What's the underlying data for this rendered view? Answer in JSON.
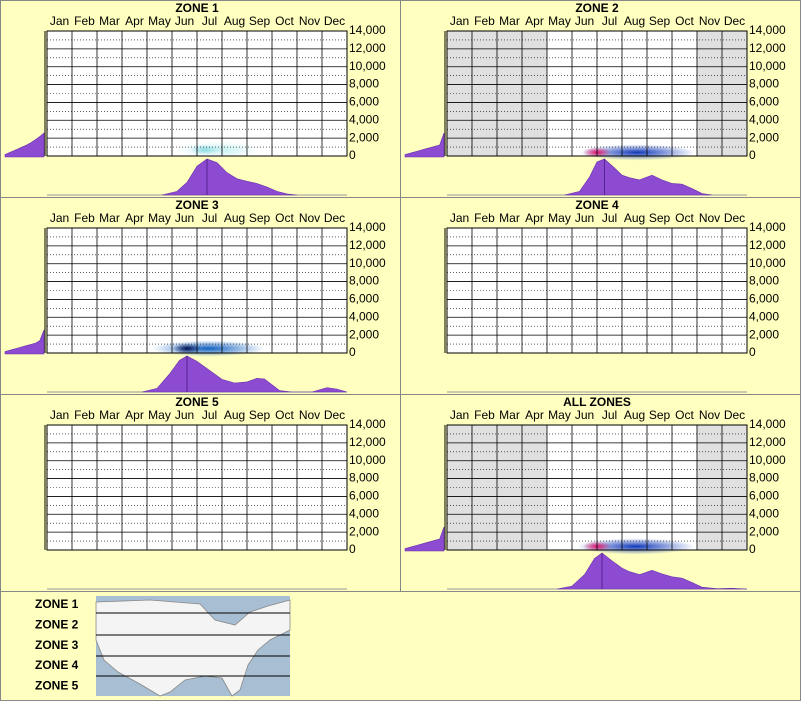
{
  "chart_data": [
    {
      "type": "density",
      "title": "ZONE 1",
      "categories": [
        "Jan",
        "Feb",
        "Mar",
        "Apr",
        "May",
        "Jun",
        "Jul",
        "Aug",
        "Sep",
        "Oct",
        "Nov",
        "Dec"
      ],
      "ylim": [
        0,
        14000
      ],
      "yticks": [
        0,
        {
          "value": 2000,
          "label": "2,000"
        },
        {
          "value": 4000,
          "label": "4,000"
        },
        {
          "value": 6000,
          "label": "6,000"
        },
        {
          "value": 8000,
          "label": "8,000"
        },
        {
          "value": 10000,
          "label": "10,000"
        },
        {
          "value": 12000,
          "label": "12,000"
        },
        {
          "value": 14000,
          "label": "14,000"
        }
      ],
      "minor_yticks": [
        1000,
        3000,
        5000,
        7000,
        9000,
        11000,
        13000
      ],
      "shaded_months": [],
      "hotspot": {
        "x": [
          5.2,
          8.5
        ],
        "peak": 6.3,
        "elevation": 700,
        "colors": [
          "#c4f0f2",
          "#8ddce4"
        ]
      },
      "side_density": [
        0.1,
        0.18,
        0.26,
        0.34,
        0.42,
        0.5,
        0.6,
        0.72,
        0.85,
        1
      ],
      "month_density": {
        "x": [
          4.6,
          5.2,
          5.6,
          6.0,
          6.4,
          6.8,
          7.2,
          7.6,
          8.0,
          8.4,
          8.8,
          9.2,
          9.6,
          10.0
        ],
        "values": [
          0,
          0.1,
          0.35,
          0.8,
          1,
          0.9,
          0.62,
          0.45,
          0.38,
          0.32,
          0.22,
          0.1,
          0.03,
          0
        ]
      }
    },
    {
      "type": "density",
      "title": "ZONE 2",
      "categories": [
        "Jan",
        "Feb",
        "Mar",
        "Apr",
        "May",
        "Jun",
        "Jul",
        "Aug",
        "Sep",
        "Oct",
        "Nov",
        "Dec"
      ],
      "ylim": [
        0,
        14000
      ],
      "yticks": [
        0,
        {
          "value": 2000,
          "label": "2,000"
        },
        {
          "value": 4000,
          "label": "4,000"
        },
        {
          "value": 6000,
          "label": "6,000"
        },
        {
          "value": 8000,
          "label": "8,000"
        },
        {
          "value": 10000,
          "label": "10,000"
        },
        {
          "value": 12000,
          "label": "12,000"
        },
        {
          "value": 14000,
          "label": "14,000"
        }
      ],
      "minor_yticks": [
        1000,
        3000,
        5000,
        7000,
        9000,
        11000,
        13000
      ],
      "shaded_months": [
        0,
        1,
        2,
        3,
        10,
        11
      ],
      "hotspot": {
        "x": [
          5.3,
          9.9
        ],
        "peak": 6.0,
        "elevation": 400,
        "colors": [
          "#1038b8",
          "#e0106a"
        ]
      },
      "side_density": [
        0.1,
        0.15,
        0.2,
        0.25,
        0.3,
        0.35,
        0.4,
        0.45,
        0.5,
        1
      ],
      "month_density": {
        "x": [
          4.7,
          5.3,
          5.7,
          6.0,
          6.3,
          6.7,
          7.0,
          7.3,
          7.7,
          8.2,
          8.6,
          9.0,
          9.4,
          9.8,
          10.2,
          10.6
        ],
        "values": [
          0,
          0.1,
          0.5,
          0.92,
          1,
          0.75,
          0.55,
          0.48,
          0.42,
          0.55,
          0.42,
          0.32,
          0.3,
          0.18,
          0.04,
          0
        ]
      }
    },
    {
      "type": "density",
      "title": "ZONE 3",
      "categories": [
        "Jan",
        "Feb",
        "Mar",
        "Apr",
        "May",
        "Jun",
        "Jul",
        "Aug",
        "Sep",
        "Oct",
        "Nov",
        "Dec"
      ],
      "ylim": [
        0,
        14000
      ],
      "yticks": [
        0,
        {
          "value": 2000,
          "label": "2,000"
        },
        {
          "value": 4000,
          "label": "4,000"
        },
        {
          "value": 6000,
          "label": "6,000"
        },
        {
          "value": 8000,
          "label": "8,000"
        },
        {
          "value": 10000,
          "label": "10,000"
        },
        {
          "value": 12000,
          "label": "12,000"
        },
        {
          "value": 14000,
          "label": "14,000"
        }
      ],
      "minor_yticks": [
        1000,
        3000,
        5000,
        7000,
        9000,
        11000,
        13000
      ],
      "shaded_months": [],
      "hotspot": {
        "x": [
          4.2,
          8.7
        ],
        "peak": 5.6,
        "elevation": 500,
        "colors": [
          "#1060c0",
          "#001050"
        ]
      },
      "side_density": [
        0.1,
        0.15,
        0.2,
        0.25,
        0.3,
        0.35,
        0.4,
        0.45,
        0.55,
        1
      ],
      "month_density": {
        "x": [
          3.8,
          4.4,
          4.9,
          5.3,
          5.6,
          6.0,
          6.5,
          7.0,
          7.5,
          8.0,
          8.4,
          8.7,
          9.0,
          9.3,
          9.8,
          10.6,
          11.2,
          11.6,
          12.0
        ],
        "values": [
          0,
          0.1,
          0.5,
          0.88,
          1,
          0.85,
          0.6,
          0.35,
          0.25,
          0.28,
          0.38,
          0.36,
          0.2,
          0.04,
          0,
          0,
          0.12,
          0.08,
          0
        ]
      }
    },
    {
      "type": "density",
      "title": "ZONE 4",
      "categories": [
        "Jan",
        "Feb",
        "Mar",
        "Apr",
        "May",
        "Jun",
        "Jul",
        "Aug",
        "Sep",
        "Oct",
        "Nov",
        "Dec"
      ],
      "ylim": [
        0,
        14000
      ],
      "yticks": [
        0,
        {
          "value": 2000,
          "label": "2,000"
        },
        {
          "value": 4000,
          "label": "4,000"
        },
        {
          "value": 6000,
          "label": "6,000"
        },
        {
          "value": 8000,
          "label": "8,000"
        },
        {
          "value": 10000,
          "label": "10,000"
        },
        {
          "value": 12000,
          "label": "12,000"
        },
        {
          "value": 14000,
          "label": "14,000"
        }
      ],
      "minor_yticks": [
        1000,
        3000,
        5000,
        7000,
        9000,
        11000,
        13000
      ],
      "shaded_months": []
    },
    {
      "type": "density",
      "title": "ZONE 5",
      "categories": [
        "Jan",
        "Feb",
        "Mar",
        "Apr",
        "May",
        "Jun",
        "Jul",
        "Aug",
        "Sep",
        "Oct",
        "Nov",
        "Dec"
      ],
      "ylim": [
        0,
        14000
      ],
      "yticks": [
        0,
        {
          "value": 2000,
          "label": "2,000"
        },
        {
          "value": 4000,
          "label": "4,000"
        },
        {
          "value": 6000,
          "label": "6,000"
        },
        {
          "value": 8000,
          "label": "8,000"
        },
        {
          "value": 10000,
          "label": "10,000"
        },
        {
          "value": 12000,
          "label": "12,000"
        },
        {
          "value": 14000,
          "label": "14,000"
        }
      ],
      "minor_yticks": [
        1000,
        3000,
        5000,
        7000,
        9000,
        11000,
        13000
      ],
      "shaded_months": []
    },
    {
      "type": "density",
      "title": "ALL ZONES",
      "categories": [
        "Jan",
        "Feb",
        "Mar",
        "Apr",
        "May",
        "Jun",
        "Jul",
        "Aug",
        "Sep",
        "Oct",
        "Nov",
        "Dec"
      ],
      "ylim": [
        0,
        14000
      ],
      "yticks": [
        0,
        {
          "value": 2000,
          "label": "2,000"
        },
        {
          "value": 4000,
          "label": "4,000"
        },
        {
          "value": 6000,
          "label": "6,000"
        },
        {
          "value": 8000,
          "label": "8,000"
        },
        {
          "value": 10000,
          "label": "10,000"
        },
        {
          "value": 12000,
          "label": "12,000"
        },
        {
          "value": 14000,
          "label": "14,000"
        }
      ],
      "minor_yticks": [
        1000,
        3000,
        5000,
        7000,
        9000,
        11000,
        13000
      ],
      "shaded_months": [
        0,
        1,
        2,
        3,
        10,
        11
      ],
      "hotspot": {
        "x": [
          5.2,
          9.9
        ],
        "peak": 6.0,
        "elevation": 400,
        "colors": [
          "#1038b8",
          "#e0106a"
        ]
      },
      "side_density": [
        0.1,
        0.15,
        0.2,
        0.25,
        0.3,
        0.35,
        0.4,
        0.45,
        0.5,
        1
      ],
      "month_density": {
        "x": [
          4.4,
          5.0,
          5.5,
          5.9,
          6.2,
          6.6,
          7.0,
          7.3,
          7.7,
          8.2,
          8.6,
          9.0,
          9.4,
          9.8,
          10.2,
          10.8,
          11.4,
          12.0
        ],
        "values": [
          0,
          0.08,
          0.4,
          0.85,
          1,
          0.78,
          0.58,
          0.48,
          0.4,
          0.52,
          0.42,
          0.34,
          0.3,
          0.18,
          0.05,
          0.01,
          0.02,
          0
        ]
      }
    }
  ],
  "legend": {
    "labels": [
      "ZONE 1",
      "ZONE 2",
      "ZONE 3",
      "ZONE 4",
      "ZONE 5"
    ]
  }
}
